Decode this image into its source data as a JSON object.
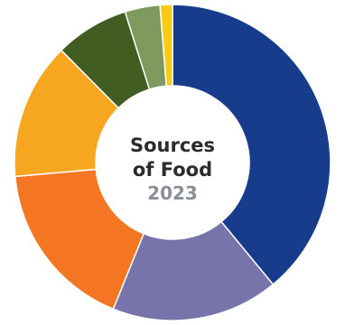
{
  "chart_data": {
    "type": "pie",
    "variant": "donut",
    "title": "Sources of Food",
    "subtitle": "2023",
    "slices": [
      {
        "value": 40.2,
        "color": "#183c8c"
      },
      {
        "value": 17.6,
        "color": "#7674ab"
      },
      {
        "value": 18.0,
        "color": "#f47623"
      },
      {
        "value": 14.4,
        "color": "#f6a61f"
      },
      {
        "value": 7.8,
        "color": "#425d22"
      },
      {
        "value": 3.7,
        "color": "#7f9a5e"
      },
      {
        "value": 1.3,
        "color": "#f8cc15"
      }
    ]
  }
}
